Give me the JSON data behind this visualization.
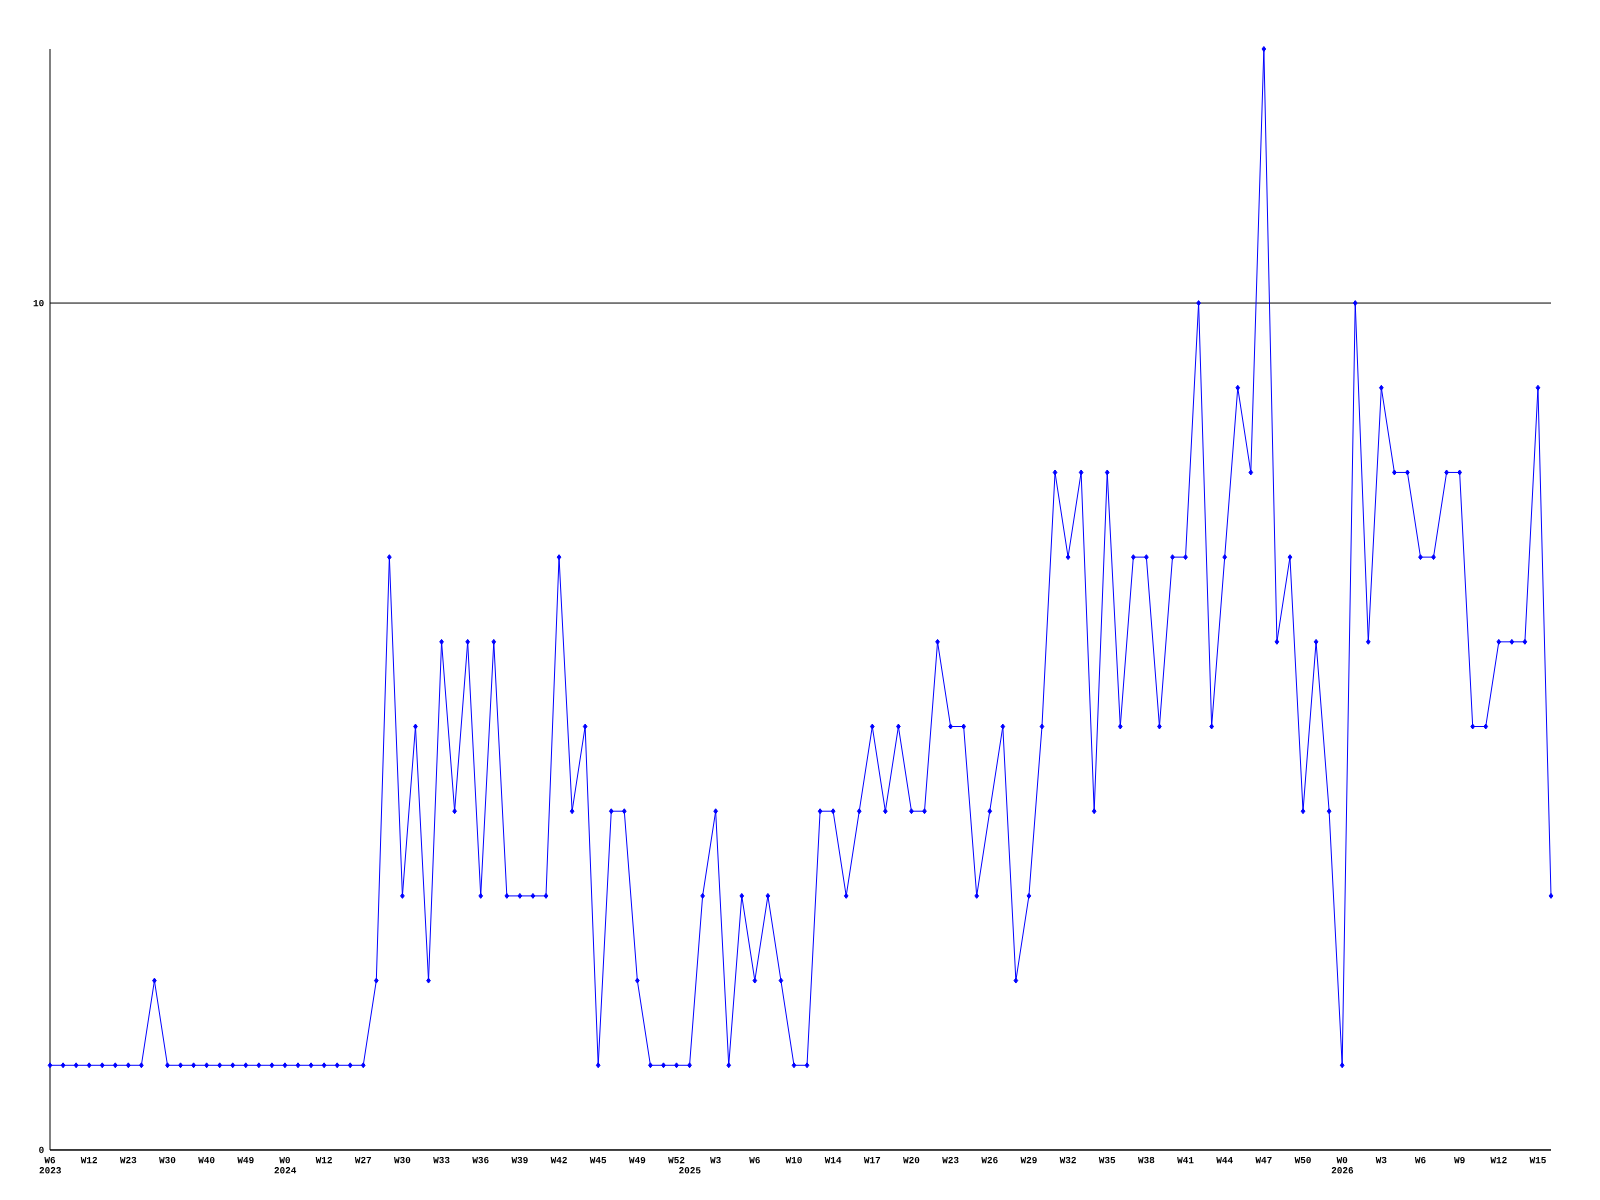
{
  "chart_data": {
    "type": "line",
    "color": "#0000ff",
    "marker": "diamond",
    "grid": "y",
    "ylim": [
      0,
      13
    ],
    "yticks": [
      0,
      10
    ],
    "categories": [
      "W6 2023",
      null,
      null,
      "W12",
      null,
      null,
      "W23",
      null,
      null,
      "W30",
      null,
      null,
      "W40",
      null,
      null,
      "W49",
      null,
      null,
      "W0 2024",
      null,
      null,
      "W12",
      null,
      null,
      "W27",
      null,
      null,
      "W30",
      null,
      null,
      "W33",
      null,
      null,
      "W36",
      null,
      null,
      "W39",
      null,
      null,
      "W42",
      null,
      null,
      "W45",
      null,
      null,
      "W49",
      null,
      null,
      "W52",
      "2025",
      null,
      "W3",
      null,
      null,
      "W6",
      null,
      null,
      "W10",
      null,
      null,
      "W14",
      null,
      null,
      "W17",
      null,
      null,
      "W20",
      null,
      null,
      "W23",
      null,
      null,
      "W26",
      null,
      null,
      "W29",
      null,
      null,
      "W32",
      null,
      null,
      "W35",
      null,
      null,
      "W38",
      null,
      null,
      "W41",
      null,
      null,
      "W44",
      null,
      null,
      "W47",
      null,
      null,
      "W50",
      null,
      null,
      "W0 2026",
      null,
      null,
      "W3",
      null,
      null,
      "W6",
      null,
      null,
      "W9",
      null,
      null,
      "W12",
      null,
      null,
      "W15",
      null
    ],
    "values": [
      1,
      1,
      1,
      1,
      1,
      1,
      1,
      1,
      2,
      1,
      1,
      1,
      1,
      1,
      1,
      1,
      1,
      1,
      1,
      1,
      1,
      1,
      1,
      1,
      1,
      2,
      7,
      3,
      5,
      2,
      6,
      4,
      6,
      3,
      6,
      3,
      3,
      3,
      3,
      7,
      4,
      5,
      1,
      4,
      4,
      2,
      1,
      1,
      1,
      1,
      3,
      4,
      1,
      3,
      2,
      3,
      2,
      1,
      1,
      4,
      4,
      3,
      4,
      5,
      4,
      5,
      4,
      4,
      6,
      5,
      5,
      3,
      4,
      5,
      2,
      3,
      5,
      8,
      7,
      8,
      4,
      8,
      5,
      7,
      7,
      5,
      7,
      7,
      10,
      5,
      7,
      9,
      8,
      13,
      6,
      7,
      4,
      6,
      4,
      1,
      10,
      6,
      9,
      8,
      8,
      7,
      7,
      8,
      8,
      5,
      5,
      6,
      6,
      6,
      9,
      3
    ]
  }
}
